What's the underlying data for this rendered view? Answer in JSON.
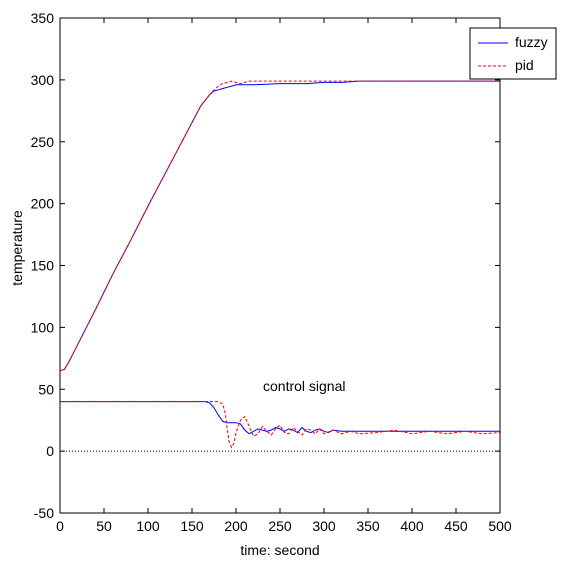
{
  "chart_data": {
    "type": "line",
    "title": "",
    "xlabel": "time: second",
    "ylabel": "temperature",
    "xlim": [
      0,
      500
    ],
    "ylim": [
      -50,
      350
    ],
    "xticks": [
      0,
      50,
      100,
      150,
      200,
      250,
      300,
      350,
      400,
      450,
      500
    ],
    "yticks": [
      -50,
      0,
      50,
      100,
      150,
      200,
      250,
      300,
      350
    ],
    "grid": false,
    "legend_position": "top-right",
    "annotation": "control signal",
    "series": [
      {
        "name": "fuzzy",
        "group": "temperature",
        "color": "#0000ff",
        "style": "solid",
        "x": [
          0,
          5,
          10,
          20,
          40,
          60,
          80,
          100,
          120,
          140,
          160,
          170,
          175,
          180,
          185,
          190,
          195,
          200,
          210,
          220,
          250,
          280,
          300,
          320,
          340,
          400,
          500
        ],
        "y": [
          65,
          66,
          72,
          86,
          114,
          143,
          170,
          198,
          225,
          252,
          279,
          288,
          291,
          292,
          293,
          294,
          295,
          296,
          296,
          296,
          297,
          297,
          298,
          298,
          299,
          299,
          299
        ]
      },
      {
        "name": "pid",
        "group": "temperature",
        "color": "#ff0000",
        "style": "dashed",
        "x": [
          0,
          5,
          10,
          20,
          40,
          60,
          80,
          100,
          120,
          140,
          160,
          170,
          175,
          180,
          185,
          190,
          195,
          200,
          205,
          210,
          215,
          220,
          230,
          250,
          280,
          300,
          320,
          340,
          400,
          500
        ],
        "y": [
          65,
          66,
          72,
          86,
          114,
          143,
          170,
          198,
          225,
          252,
          279,
          288,
          292,
          295,
          297,
          298,
          299,
          298,
          297,
          298,
          299,
          299,
          299,
          299,
          299,
          299,
          299,
          299,
          299,
          299
        ]
      },
      {
        "name": "fuzzy",
        "group": "control signal",
        "color": "#0000ff",
        "style": "solid",
        "x": [
          0,
          50,
          100,
          150,
          165,
          170,
          175,
          180,
          185,
          190,
          195,
          200,
          205,
          210,
          215,
          220,
          225,
          230,
          235,
          240,
          245,
          250,
          255,
          260,
          265,
          270,
          275,
          280,
          285,
          290,
          295,
          300,
          305,
          310,
          320,
          330,
          340,
          360,
          380,
          400,
          450,
          500
        ],
        "y": [
          40,
          40,
          40,
          40,
          40,
          39,
          35,
          29,
          24,
          23,
          23,
          23,
          22,
          17,
          14,
          16,
          18,
          17,
          16,
          17,
          19,
          18,
          16,
          18,
          17,
          15,
          19,
          16,
          15,
          17,
          18,
          16,
          15,
          17,
          16,
          16,
          16,
          16,
          16,
          16,
          16,
          16
        ]
      },
      {
        "name": "pid",
        "group": "control signal",
        "color": "#ff0000",
        "style": "dashed",
        "x": [
          0,
          50,
          100,
          150,
          180,
          185,
          188,
          190,
          192,
          195,
          198,
          200,
          205,
          210,
          215,
          220,
          225,
          230,
          235,
          240,
          245,
          250,
          255,
          260,
          265,
          270,
          275,
          280,
          285,
          290,
          295,
          300,
          310,
          320,
          330,
          340,
          360,
          380,
          400,
          420,
          440,
          460,
          480,
          500
        ],
        "y": [
          40,
          40,
          40,
          40,
          40,
          38,
          30,
          18,
          8,
          3,
          7,
          15,
          25,
          28,
          20,
          12,
          14,
          20,
          16,
          13,
          18,
          21,
          15,
          14,
          19,
          16,
          13,
          18,
          17,
          14,
          18,
          14,
          17,
          14,
          16,
          14,
          15,
          17,
          14,
          16,
          14,
          16,
          14,
          15
        ]
      },
      {
        "name": "",
        "group": "zero",
        "color": "#000000",
        "style": "dotted",
        "x": [
          0,
          500
        ],
        "y": [
          0,
          0
        ]
      }
    ]
  }
}
